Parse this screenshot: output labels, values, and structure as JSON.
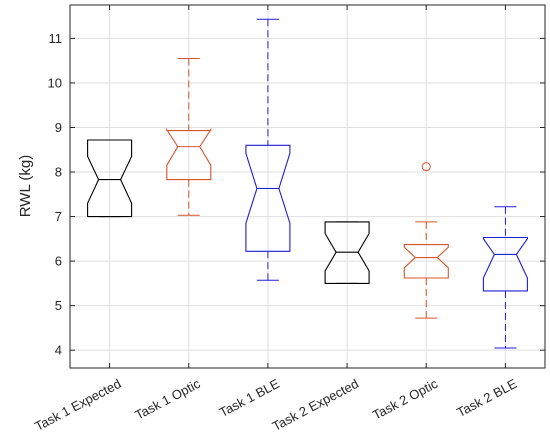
{
  "chart_data": {
    "type": "box",
    "xlabel": "",
    "ylabel": "RWL (kg)",
    "ylim": [
      3.6,
      11.75
    ],
    "yticks": [
      4,
      5,
      6,
      7,
      8,
      9,
      10,
      11
    ],
    "grid": true,
    "notched": true,
    "categories": [
      "Task 1  Expected",
      "Task 1 Optic",
      "Task 1  BLE",
      "Task 2  Expected",
      "Task 2 Optic",
      "Task 2  BLE"
    ],
    "boxes": [
      {
        "category": "Task 1  Expected",
        "color": "#000000",
        "q1": 7.0,
        "median": 7.83,
        "q3": 8.72,
        "whisker_low": 7.0,
        "whisker_high": 8.72,
        "notch_low": 7.3,
        "notch_high": 8.35,
        "outliers": []
      },
      {
        "category": "Task 1 Optic",
        "color": "#d9542c",
        "q1": 7.83,
        "median": 8.57,
        "q3": 8.93,
        "whisker_low": 7.03,
        "whisker_high": 10.55,
        "notch_low": 8.15,
        "notch_high": 8.95,
        "outliers": []
      },
      {
        "category": "Task 1  BLE",
        "color": "#1f1fd6",
        "q1": 6.22,
        "median": 7.63,
        "q3": 8.6,
        "whisker_low": 5.57,
        "whisker_high": 11.43,
        "notch_low": 6.85,
        "notch_high": 8.42,
        "outliers": []
      },
      {
        "category": "Task 2  Expected",
        "color": "#000000",
        "q1": 5.5,
        "median": 6.2,
        "q3": 6.88,
        "whisker_low": 5.5,
        "whisker_high": 6.88,
        "notch_low": 5.78,
        "notch_high": 6.62,
        "outliers": []
      },
      {
        "category": "Task 2 Optic",
        "color": "#d9542c",
        "q1": 5.62,
        "median": 6.08,
        "q3": 6.37,
        "whisker_low": 4.72,
        "whisker_high": 6.88,
        "notch_low": 5.85,
        "notch_high": 6.31,
        "outliers": [
          8.12
        ]
      },
      {
        "category": "Task 2  BLE",
        "color": "#1f1fd6",
        "q1": 5.33,
        "median": 6.15,
        "q3": 6.53,
        "whisker_low": 4.05,
        "whisker_high": 7.22,
        "notch_low": 5.62,
        "notch_high": 6.5,
        "outliers": []
      }
    ]
  }
}
